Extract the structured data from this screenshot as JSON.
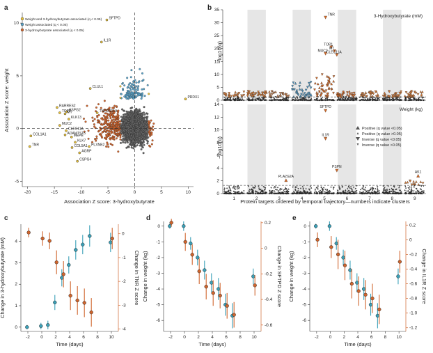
{
  "panel_labels": {
    "a": "a",
    "b": "b",
    "c": "c",
    "d": "d",
    "e": "e"
  },
  "chart_data": [
    {
      "id": "a",
      "type": "scatter",
      "xlabel": "Association Z score: 3-hydroxybutyrate",
      "ylabel": "Association Z score: weight",
      "xlim": [
        -21,
        11
      ],
      "ylim": [
        -5.5,
        11
      ],
      "xticks": [
        "-20",
        "-15",
        "-10",
        "-5",
        "0",
        "5",
        "10"
      ],
      "yticks": [
        "-5",
        "0",
        "5",
        "10"
      ],
      "legend": [
        {
          "label": "Weight and 3-hydroxybutyrate associated (q < 0.05)",
          "color": "#e8c23a"
        },
        {
          "label": "Weight associated (q < 0.05)",
          "color": "#5aa3c9"
        },
        {
          "label": "3-hydroxybutyrate associated (q < 0.05)",
          "color": "#d0652d"
        }
      ],
      "colors": {
        "both": "#e8c23a",
        "weight": "#5aa3c9",
        "hb": "#d0652d",
        "none": "#666666"
      },
      "labeled_points": [
        {
          "name": "SFTPD",
          "x": -5.2,
          "y": 10.3
        },
        {
          "name": "IL1R",
          "x": -6.2,
          "y": 8.2
        },
        {
          "name": "PRDX1",
          "x": 9.5,
          "y": 2.8
        },
        {
          "name": "CLUL1",
          "x": -8.3,
          "y": 3.8
        },
        {
          "name": "RARRES2",
          "x": -14.5,
          "y": 2.0
        },
        {
          "name": "HSPG2",
          "x": -12.7,
          "y": 1.6
        },
        {
          "name": "TOP1",
          "x": -14.0,
          "y": 1.5
        },
        {
          "name": "MT",
          "x": -13.0,
          "y": 1.4
        },
        {
          "name": "KLK13",
          "x": -12.3,
          "y": 0.9
        },
        {
          "name": "TNFRSF1A",
          "x": -7.0,
          "y": 1.5
        },
        {
          "name": "MUC2",
          "x": -14.0,
          "y": 0.3
        },
        {
          "name": "CLEC11A",
          "x": -12.8,
          "y": -0.2
        },
        {
          "name": "COL1A1",
          "x": -19.4,
          "y": -0.7
        },
        {
          "name": "ADAMTS15",
          "x": -13.0,
          "y": -0.6
        },
        {
          "name": "MEPE",
          "x": -11.8,
          "y": -0.8
        },
        {
          "name": "KLK7",
          "x": -11.1,
          "y": -1.3
        },
        {
          "name": "TNR",
          "x": -19.6,
          "y": -1.7
        },
        {
          "name": "COL5A1",
          "x": -11.7,
          "y": -1.8
        },
        {
          "name": "PLXNB2",
          "x": -8.5,
          "y": -1.7
        },
        {
          "name": "AGRP",
          "x": -10.3,
          "y": -2.3
        },
        {
          "name": "CSPG4",
          "x": -10.7,
          "y": -3.1
        }
      ]
    },
    {
      "id": "b",
      "type": "scatter",
      "xlabel": "Protein targets ordered by temporal trajectory—numbers indicate clusters",
      "clusters": [
        "1",
        "2",
        "3",
        "4",
        "5",
        "6",
        "7",
        "8",
        "9"
      ],
      "top": {
        "title": "3-Hydroxybutyrate (mM)",
        "ylabel": "−log10(q)",
        "ylim": [
          0,
          35
        ],
        "yticks": [
          "0",
          "5",
          "10",
          "15",
          "20",
          "25",
          "30",
          "35"
        ],
        "labeled_points": [
          {
            "name": "TNR",
            "cluster": 5.05,
            "y": 32.0
          },
          {
            "name": "TOP1",
            "cluster": 5.3,
            "y": 20.5
          },
          {
            "name": "MT",
            "cluster": 5.45,
            "y": 19.0
          },
          {
            "name": "MUC2",
            "cluster": 5.05,
            "y": 18.0
          },
          {
            "name": "CLEC11A",
            "cluster": 5.55,
            "y": 17.5
          }
        ]
      },
      "bottom": {
        "title": "Weight (kg)",
        "ylabel": "−log10(q)",
        "ylim": [
          0,
          14
        ],
        "yticks": [
          "0",
          "2",
          "4",
          "6",
          "8",
          "10",
          "12",
          "14"
        ],
        "labeled_points": [
          {
            "name": "SFTPD",
            "cluster": 5.05,
            "y": 13.0
          },
          {
            "name": "IL1R",
            "cluster": 5.05,
            "y": 8.6
          },
          {
            "name": "PSPN",
            "cluster": 5.55,
            "y": 3.6
          },
          {
            "name": "PLA2G2A",
            "cluster": 3.3,
            "y": 2.1
          },
          {
            "name": "AK1",
            "cluster": 9.15,
            "y": 2.8
          }
        ],
        "legend": [
          {
            "label": "Positive (q value <0.05)",
            "marker": "big-up"
          },
          {
            "label": "Positive (q value >0.05)",
            "marker": "small-up"
          },
          {
            "label": "Inverse (q value <0.05)",
            "marker": "big-down"
          },
          {
            "label": "Inverse (q value >0.05)",
            "marker": "small-down"
          }
        ]
      }
    },
    {
      "id": "c",
      "type": "line",
      "xlabel": "Time (days)",
      "ylabel_left": "Change in 3-hydroxybutyrate (mM)",
      "ylabel_right": "Change in TNR Z score",
      "left_color": "#3aa0b8",
      "right_color": "#d0652d",
      "xlim": [
        -3,
        11
      ],
      "ylim_left": [
        -0.2,
        4.8
      ],
      "ylim_right": [
        -4.1,
        0.4
      ],
      "xticks": [
        "-2",
        "0",
        "2",
        "4",
        "6",
        "8",
        "10"
      ],
      "yticks_left": [
        "0",
        "1",
        "2",
        "3",
        "4"
      ],
      "yticks_right": [
        "0",
        "-1",
        "-2",
        "-3",
        "-4"
      ],
      "series_left": {
        "x": [
          -2,
          0,
          1,
          2,
          3,
          4,
          5,
          6,
          7,
          10
        ],
        "y": [
          0.0,
          0.05,
          0.1,
          1.15,
          2.3,
          2.9,
          3.6,
          3.85,
          4.25,
          3.95
        ],
        "err": [
          0.1,
          0.15,
          0.2,
          0.35,
          0.4,
          0.4,
          0.45,
          0.45,
          0.5,
          0.45
        ]
      },
      "series_right": {
        "x": [
          -2,
          0,
          1,
          2,
          3,
          4,
          5,
          6,
          7,
          10
        ],
        "y": [
          0.05,
          -0.2,
          -0.3,
          -1.2,
          -1.7,
          -2.6,
          -2.8,
          -2.9,
          -3.3,
          -0.2
        ],
        "err": [
          0.2,
          0.3,
          0.35,
          0.5,
          0.55,
          0.6,
          0.6,
          0.6,
          0.6,
          0.45
        ]
      }
    },
    {
      "id": "d",
      "type": "line",
      "xlabel": "Time (days)",
      "ylabel_left": "Change in weight (kg)",
      "ylabel_right": "Change in SFTPD Z score",
      "left_color": "#3aa0b8",
      "right_color": "#d0652d",
      "xlim": [
        -3,
        11
      ],
      "ylim_left": [
        -6.7,
        0.3
      ],
      "ylim_right": [
        -0.65,
        0.21
      ],
      "xticks": [
        "-2",
        "0",
        "2",
        "4",
        "6",
        "8",
        "10"
      ],
      "yticks_left": [
        "0",
        "-1",
        "-2",
        "-3",
        "-4",
        "-5",
        "-6"
      ],
      "yticks_right": [
        "0.2",
        "0",
        "-0.2",
        "-0.4",
        "-0.6"
      ],
      "series_left": {
        "x": [
          -2,
          0,
          1,
          2,
          3,
          4,
          5,
          6,
          7,
          10
        ],
        "y": [
          0.0,
          0.0,
          -1.1,
          -2.0,
          -2.8,
          -3.6,
          -4.0,
          -5.0,
          -5.7,
          -3.2
        ],
        "err": [
          0.15,
          0.3,
          0.4,
          0.5,
          0.6,
          0.6,
          0.7,
          0.7,
          0.8,
          0.5
        ]
      },
      "series_right": {
        "x": [
          -2,
          0,
          1,
          2,
          3,
          4,
          5,
          6,
          7,
          10
        ],
        "y": [
          0.2,
          0.05,
          -0.05,
          -0.18,
          -0.3,
          -0.35,
          -0.37,
          -0.45,
          -0.52,
          -0.29
        ],
        "err": [
          0.03,
          0.07,
          0.08,
          0.1,
          0.1,
          0.1,
          0.1,
          0.1,
          0.1,
          0.08
        ]
      }
    },
    {
      "id": "e",
      "type": "line",
      "xlabel": "Time (days)",
      "ylabel_left": "Change in weight (kg)",
      "ylabel_right": "Change in IL1R Z score",
      "left_color": "#3aa0b8",
      "right_color": "#d0652d",
      "xlim": [
        -3,
        11
      ],
      "ylim_left": [
        -6.7,
        0.3
      ],
      "ylim_right": [
        -1.25,
        0.25
      ],
      "xticks": [
        "-2",
        "0",
        "2",
        "4",
        "6",
        "8",
        "10"
      ],
      "yticks_left": [
        "0",
        "-1",
        "-2",
        "-3",
        "-4",
        "-5",
        "-6"
      ],
      "yticks_right": [
        "0.2",
        "0",
        "-0.2",
        "-0.4",
        "-0.6",
        "-0.8",
        "-1.0",
        "-1.2"
      ],
      "series_left": {
        "x": [
          -2,
          0,
          1,
          2,
          3,
          4,
          5,
          6,
          7,
          10
        ],
        "y": [
          0.0,
          0.0,
          -1.1,
          -2.0,
          -2.8,
          -3.6,
          -4.0,
          -5.0,
          -5.7,
          -3.2
        ],
        "err": [
          0.15,
          0.3,
          0.4,
          0.5,
          0.6,
          0.6,
          0.7,
          0.7,
          0.8,
          0.5
        ]
      },
      "series_right": {
        "x": [
          -2,
          0,
          1,
          2,
          3,
          4,
          5,
          6,
          7,
          10
        ],
        "y": [
          0.0,
          -0.1,
          -0.2,
          -0.35,
          -0.6,
          -0.7,
          -0.75,
          -0.8,
          -0.95,
          -0.3
        ],
        "err": [
          0.1,
          0.15,
          0.2,
          0.2,
          0.2,
          0.2,
          0.2,
          0.2,
          0.2,
          0.15
        ]
      }
    }
  ]
}
